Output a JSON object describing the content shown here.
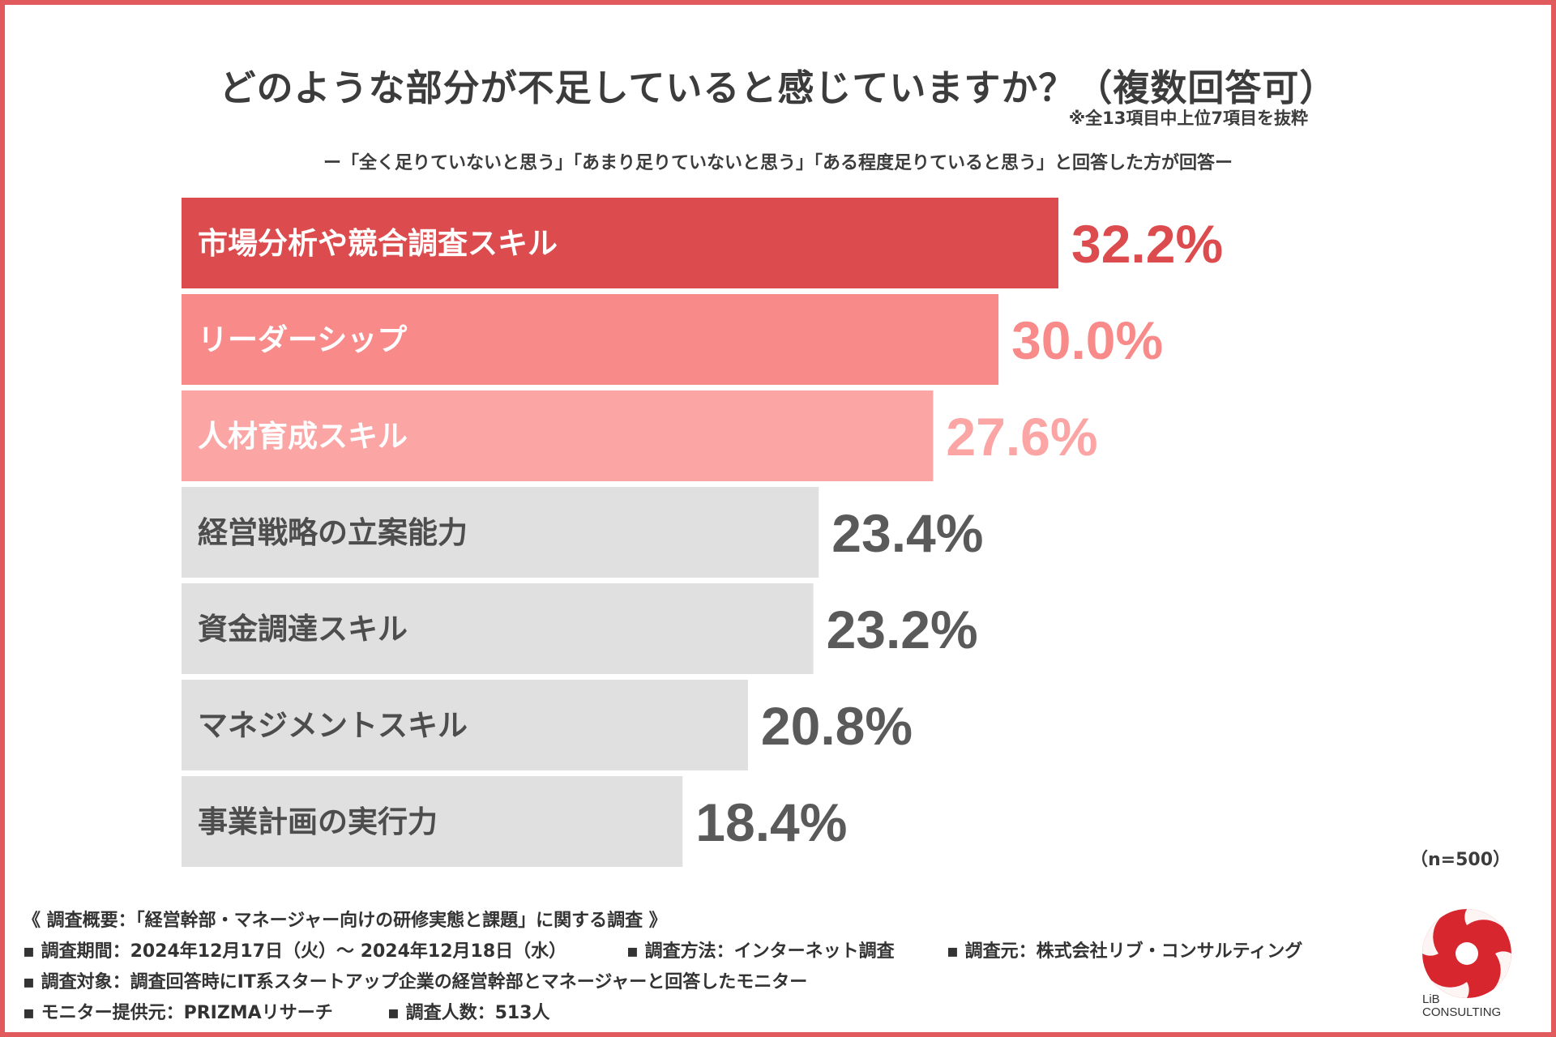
{
  "title": "どのような部分が不足していると感じていますか？（複数回答可）",
  "note": "※全13項目中上位7項目を抜粋",
  "subtitle": "ー「全く足りていないと思う」「あまり足りていないと思う」「ある程度足りていると思う」と回答した方が回答ー",
  "sample": "（n=500）",
  "chart_data": {
    "type": "bar",
    "orientation": "horizontal",
    "title": "どのような部分が不足していると感じていますか？（複数回答可）",
    "unit": "%",
    "xlim": [
      0,
      40
    ],
    "categories": [
      "市場分析や競合調査スキル",
      "リーダーシップ",
      "人材育成スキル",
      "経営戦略の立案能力",
      "資金調達スキル",
      "マネジメントスキル",
      "事業計画の実行力"
    ],
    "values": [
      32.2,
      30.0,
      27.6,
      23.4,
      23.2,
      20.8,
      18.4
    ],
    "value_labels": [
      "32.2%",
      "30.0%",
      "27.6%",
      "23.4%",
      "23.2%",
      "20.8%",
      "18.4%"
    ],
    "bar_colors": [
      "#dc4b4d",
      "#f98a8a",
      "#fba5a5",
      "#e0e0e0",
      "#e0e0e0",
      "#e0e0e0",
      "#e0e0e0"
    ],
    "label_colors": [
      "#ffffff",
      "#ffffff",
      "#ffffff",
      "#4d4d4d",
      "#4d4d4d",
      "#4d4d4d",
      "#4d4d4d"
    ],
    "value_colors": [
      "#dc4b4d",
      "#f98a8a",
      "#fba5a5",
      "#5a5a5a",
      "#5a5a5a",
      "#5a5a5a",
      "#5a5a5a"
    ]
  },
  "footer": {
    "overview": "《 調査概要：「経営幹部・マネージャー向けの研修実態と課題」に関する調査 》",
    "period": "▪ 調査期間：2024年12月17日（火）～ 2024年12月18日（水）",
    "method": "▪ 調査方法：インターネット調査",
    "source": "▪ 調査元：株式会社リブ・コンサルティング",
    "target": "▪ 調査対象：調査回答時にIT系スタートアップ企業の経営幹部とマネージャーと回答したモニター",
    "provider": "▪ モニター提供元：PRIZMAリサーチ",
    "count": "▪ 調査人数：513人"
  },
  "logo": {
    "line1": "LiB",
    "line2": "CONSULTING",
    "color": "#d8262f"
  }
}
